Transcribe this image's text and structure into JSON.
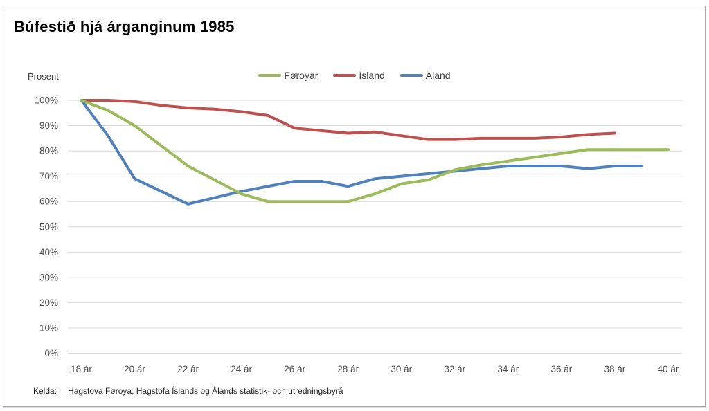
{
  "title": "Búfestið hjá árganginum 1985",
  "chart_data": {
    "type": "line",
    "title": "Búfestið hjá árganginum 1985",
    "xlabel": "",
    "ylabel": "Prosent",
    "ylim": [
      0,
      100
    ],
    "grid": "horizontal",
    "legend_position": "top-center",
    "y_ticks_percent": [
      0,
      10,
      20,
      30,
      40,
      50,
      60,
      70,
      80,
      90,
      100
    ],
    "x": [
      18,
      19,
      20,
      21,
      22,
      23,
      24,
      25,
      26,
      27,
      28,
      29,
      30,
      31,
      32,
      33,
      34,
      35,
      36,
      37,
      38,
      39,
      40
    ],
    "x_tick_ages": [
      18,
      20,
      22,
      24,
      26,
      28,
      30,
      32,
      34,
      36,
      38,
      40
    ],
    "x_tick_suffix": " ár",
    "series": [
      {
        "name": "Føroyar",
        "color": "#9BBB59",
        "values": [
          100,
          96,
          90,
          82,
          74,
          68.5,
          63,
          60,
          60,
          60,
          60,
          63,
          67,
          68.5,
          72.5,
          74.5,
          76,
          77.5,
          79,
          80.5,
          80.5,
          80.5,
          80.5
        ]
      },
      {
        "name": "Ísland",
        "color": "#C0504D",
        "values": [
          100,
          100,
          99.5,
          98,
          97,
          96.5,
          95.5,
          94,
          89,
          88,
          87,
          87.5,
          86,
          84.5,
          84.5,
          85,
          85,
          85,
          85.5,
          86.5,
          87,
          null,
          null
        ]
      },
      {
        "name": "Áland",
        "color": "#4F81BD",
        "values": [
          100,
          86,
          69,
          64,
          59,
          61.5,
          64,
          66,
          68,
          68,
          66,
          69,
          70,
          71,
          72,
          73,
          74,
          74,
          74,
          73,
          74,
          74,
          null
        ]
      }
    ]
  },
  "source": {
    "label": "Kelda:",
    "text": "Hagstova Føroya, Hagstofa Íslands og Ålands statistik- och utredningsbyrå"
  },
  "colors": {
    "grid": "#D9D9D9",
    "axis_text": "#4d4d4d",
    "frame_border": "#A8A8A8"
  }
}
